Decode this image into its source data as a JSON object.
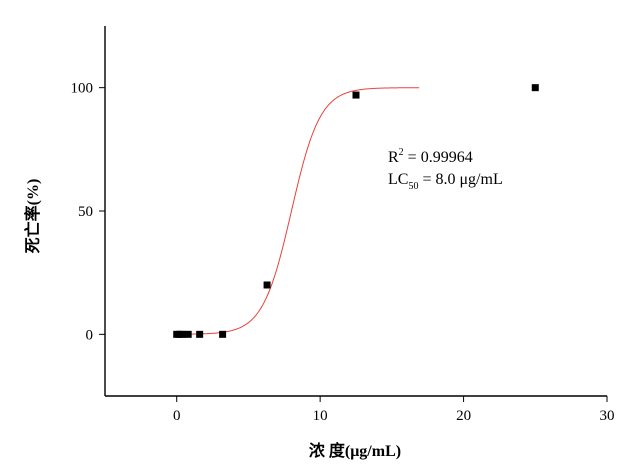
{
  "chart_data": {
    "type": "scatter",
    "xlabel": "浓  度(μg/mL)",
    "ylabel": "死亡率(%)",
    "xlim": [
      -5,
      30
    ],
    "ylim": [
      -25,
      125
    ],
    "x_ticks": [
      0,
      10,
      20,
      30
    ],
    "y_ticks": [
      0,
      50,
      100
    ],
    "grid": false,
    "legend": "none",
    "series": [
      {
        "type": "scatter",
        "marker": "square",
        "color": "#000000",
        "points": [
          {
            "x": 0.0,
            "y": 0
          },
          {
            "x": 0.2,
            "y": 0
          },
          {
            "x": 0.4,
            "y": 0
          },
          {
            "x": 0.8,
            "y": 0
          },
          {
            "x": 1.6,
            "y": 0
          },
          {
            "x": 3.2,
            "y": 0
          },
          {
            "x": 6.3,
            "y": 20
          },
          {
            "x": 12.5,
            "y": 97
          },
          {
            "x": 25.0,
            "y": 100
          }
        ]
      },
      {
        "type": "line",
        "style": "fitted sigmoid curve",
        "color": "#e8423a",
        "x_range": [
          0,
          16.9
        ],
        "bottom": 0,
        "top": 100,
        "midpoint": 8.0,
        "slope_factor": 1.0
      }
    ],
    "annotations": {
      "r2_base": "R",
      "r2_sup": "2",
      "r2_value": " = 0.99964",
      "lc_base": "LC",
      "lc_sub": "50",
      "lc_value": " = 8.0 μg/mL"
    }
  }
}
